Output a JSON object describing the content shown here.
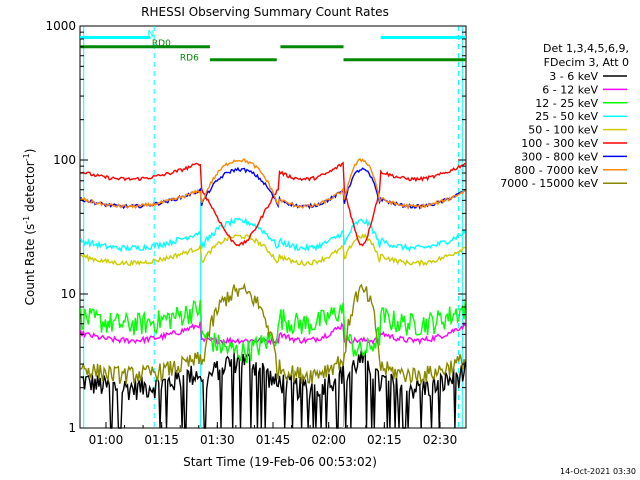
{
  "chart_data": {
    "type": "line",
    "title": "RHESSI Observing Summary Count Rates",
    "xlabel": "Start Time (19-Feb-06 00:53:02)",
    "ylabel_main": "Count Rate (s",
    "ylabel_sup1": "-1",
    "ylabel_mid": " detector",
    "ylabel_sup2": "-1",
    "ylabel_end": ")",
    "y_scale": "log",
    "ylim": [
      1,
      1000
    ],
    "xlim_minutes": [
      -7,
      97
    ],
    "x_ticks": [
      {
        "label": "01:00",
        "min": 0
      },
      {
        "label": "01:15",
        "min": 15
      },
      {
        "label": "01:30",
        "min": 30
      },
      {
        "label": "01:45",
        "min": 45
      },
      {
        "label": "02:00",
        "min": 60
      },
      {
        "label": "02:15",
        "min": 75
      },
      {
        "label": "02:30",
        "min": 90
      }
    ],
    "y_ticks": [
      {
        "label": "1",
        "value": 1
      },
      {
        "label": "10",
        "value": 10
      },
      {
        "label": "100",
        "value": 100
      },
      {
        "label": "1000",
        "value": 1000
      }
    ],
    "legend_header": [
      "Det 1,3,4,5,6,9,",
      "FDecim 3, Att 0"
    ],
    "legend_position": "right",
    "series": [
      {
        "name": "3 - 6 keV",
        "color": "#000000",
        "day": [
          2,
          3
        ],
        "bump": 1.2,
        "noise": 0.2,
        "sparse": true
      },
      {
        "name": "6 - 12 keV",
        "color": "#ff00ff",
        "day": [
          4.5,
          4.5
        ],
        "bump": 0,
        "noise": 0.05,
        "sparse": false
      },
      {
        "name": "12 - 25 keV",
        "color": "#00ff00",
        "day": [
          6,
          6
        ],
        "bump": -1.5,
        "noise": 0.2,
        "sparse": false
      },
      {
        "name": "25 - 50 keV",
        "color": "#00ffff",
        "day": [
          22,
          25
        ],
        "bump": 13,
        "noise": 0.05,
        "sparse": false
      },
      {
        "name": "50 - 100 keV",
        "color": "#cccc00",
        "day": [
          17,
          19
        ],
        "bump": 10,
        "noise": 0.04,
        "sparse": false
      },
      {
        "name": "100 - 300 keV",
        "color": "#ff0000",
        "day": [
          72,
          75
        ],
        "bump": -42,
        "noise": 0.03,
        "sparse": false
      },
      {
        "name": "300 - 800 keV",
        "color": "#0000ff",
        "day": [
          45,
          48
        ],
        "bump": 40,
        "noise": 0.03,
        "sparse": false
      },
      {
        "name": "800 - 7000 keV",
        "color": "#ff8800",
        "day": [
          45,
          48
        ],
        "bump": 55,
        "noise": 0.03,
        "sparse": false
      },
      {
        "name": "7000 - 15000 keV",
        "color": "#888800",
        "day": [
          2.5,
          3
        ],
        "bump": 8,
        "noise": 0.15,
        "sparse": false
      }
    ],
    "night_intervals_min": [
      [
        -7,
        25.5
      ],
      [
        46.5,
        64
      ],
      [
        74,
        97
      ]
    ],
    "day_intervals_min": [
      [
        25.5,
        46.5
      ],
      [
        64,
        74
      ]
    ],
    "saa_vlines_min": [
      -6,
      96
    ],
    "saa_dashed_min": [
      13,
      95
    ],
    "attenuator_bars": [
      {
        "label": "N",
        "color": "#00ffff",
        "x": [
          -7,
          12
        ],
        "y": 820
      },
      {
        "label": "",
        "color": "#00ffff",
        "x": [
          74,
          97
        ],
        "y": 820
      },
      {
        "label": "RD0",
        "color": "#008800",
        "x": [
          -7,
          28
        ],
        "y": 700
      },
      {
        "label": "",
        "color": "#008800",
        "x": [
          47,
          64
        ],
        "y": 700
      },
      {
        "label": "RD6",
        "color": "#008800",
        "x": [
          28,
          46
        ],
        "y": 560
      },
      {
        "label": "",
        "color": "#008800",
        "x": [
          64,
          97
        ],
        "y": 560
      }
    ],
    "timestamp": "14-Oct-2021 03:30"
  }
}
